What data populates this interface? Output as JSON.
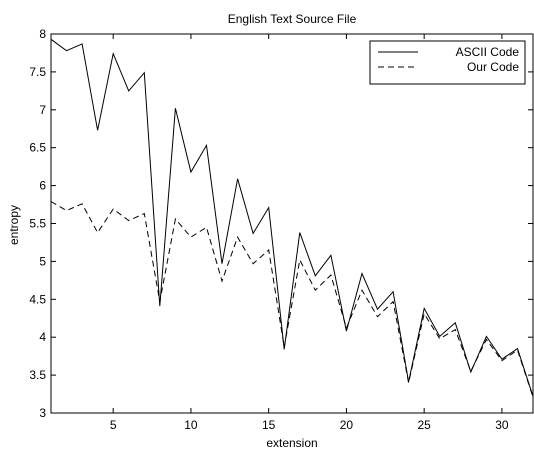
{
  "chart_data": {
    "type": "line",
    "title": "English Text Source File",
    "xlabel": "extension",
    "ylabel": "entropy",
    "xlim": [
      1,
      32
    ],
    "ylim": [
      3,
      8
    ],
    "xticks": [
      5,
      10,
      15,
      20,
      25,
      30
    ],
    "yticks": [
      3,
      3.5,
      4,
      4.5,
      5,
      5.5,
      6,
      6.5,
      7,
      7.5,
      8
    ],
    "ytick_labels": [
      "3",
      "3.5",
      "4",
      "4.5",
      "5",
      "5.5",
      "6",
      "6.5",
      "7",
      "7.5",
      "8"
    ],
    "grid": false,
    "legend_position": "top-right",
    "series": [
      {
        "name": "ASCII Code",
        "style": "solid",
        "color": "#000000",
        "x": [
          1,
          2,
          3,
          4,
          5,
          6,
          7,
          8,
          9,
          10,
          11,
          12,
          13,
          14,
          15,
          16,
          17,
          18,
          19,
          20,
          21,
          22,
          23,
          24,
          25,
          26,
          27,
          28,
          29,
          30,
          31,
          32
        ],
        "y": [
          7.93,
          7.78,
          7.87,
          6.73,
          7.74,
          7.25,
          7.49,
          4.41,
          7.02,
          6.18,
          6.53,
          4.97,
          6.09,
          5.37,
          5.71,
          3.84,
          5.38,
          4.81,
          5.08,
          4.08,
          4.84,
          4.37,
          4.6,
          3.41,
          4.38,
          4.01,
          4.19,
          3.54,
          4.01,
          3.71,
          3.85,
          3.22
        ]
      },
      {
        "name": "Our Code",
        "style": "dashed",
        "color": "#000000",
        "x": [
          1,
          2,
          3,
          4,
          5,
          6,
          7,
          8,
          9,
          10,
          11,
          12,
          13,
          14,
          15,
          16,
          17,
          18,
          19,
          20,
          21,
          22,
          23,
          24,
          25,
          26,
          27,
          28,
          29,
          30,
          31,
          32
        ],
        "y": [
          5.79,
          5.67,
          5.76,
          5.38,
          5.69,
          5.54,
          5.63,
          4.47,
          5.56,
          5.32,
          5.45,
          4.74,
          5.32,
          4.97,
          5.15,
          3.87,
          5.02,
          4.62,
          4.82,
          4.12,
          4.62,
          4.27,
          4.47,
          3.4,
          4.31,
          3.98,
          4.1,
          3.55,
          3.97,
          3.69,
          3.83,
          3.21
        ]
      }
    ]
  }
}
